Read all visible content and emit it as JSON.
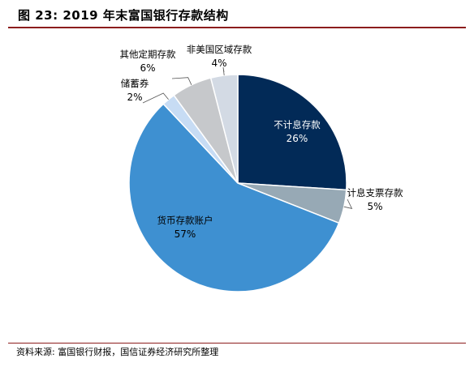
{
  "header": {
    "title": "图 23:  2019 年末富国银行存款结构"
  },
  "footer": {
    "source": "资料来源: 富国银行财报，国信证券经济研究所整理"
  },
  "chart_data": {
    "type": "pie",
    "title": "2019 年末富国银行存款结构",
    "slices": [
      {
        "label": "不计息存款",
        "value": 26,
        "pct_label": "26%",
        "color": "#022a57"
      },
      {
        "label": "计息支票存款",
        "value": 5,
        "pct_label": "5%",
        "color": "#97a9b5"
      },
      {
        "label": "货币存款账户",
        "value": 57,
        "pct_label": "57%",
        "color": "#3e90d1"
      },
      {
        "label": "储蓄券",
        "value": 2,
        "pct_label": "2%",
        "color": "#c7dcf4"
      },
      {
        "label": "其他定期存款",
        "value": 6,
        "pct_label": "6%",
        "color": "#c6c8cb"
      },
      {
        "label": "非美国区域存款",
        "value": 4,
        "pct_label": "4%",
        "color": "#d3dae4"
      }
    ]
  }
}
